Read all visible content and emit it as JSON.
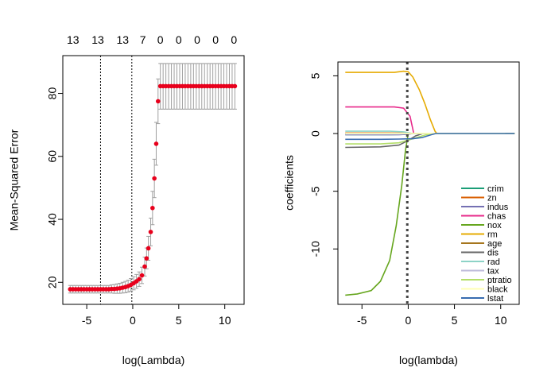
{
  "chart_data": [
    {
      "type": "scatter",
      "title": "",
      "xlabel": "log(Lambda)",
      "ylabel": "Mean-Squared Error",
      "xlim": [
        -7.6,
        12.1
      ],
      "ylim": [
        13,
        92
      ],
      "x_ticks": [
        {
          "value": -5,
          "label": "-5"
        },
        {
          "value": 0,
          "label": "0"
        },
        {
          "value": 5,
          "label": "5"
        },
        {
          "value": 10,
          "label": "10"
        }
      ],
      "y_ticks": [
        {
          "value": 20,
          "label": "20"
        },
        {
          "value": 40,
          "label": "40"
        },
        {
          "value": 60,
          "label": "60"
        },
        {
          "value": 80,
          "label": "80"
        }
      ],
      "top_axis": [
        {
          "value": -6.5,
          "label": "13"
        },
        {
          "value": -3.8,
          "label": "13"
        },
        {
          "value": -1.1,
          "label": "13"
        },
        {
          "value": 1.1,
          "label": "7"
        },
        {
          "value": 3.0,
          "label": "0"
        },
        {
          "value": 5.0,
          "label": "0"
        },
        {
          "value": 7.0,
          "label": "0"
        },
        {
          "value": 9.0,
          "label": "0"
        },
        {
          "value": 11.0,
          "label": "0"
        }
      ],
      "vlines": [
        -3.5,
        -0.1
      ],
      "point_color": "#e8001c",
      "errorbar_color": "#a0a0a0",
      "points": [
        {
          "x": -6.8,
          "y": 17.8,
          "lo": 16.6,
          "hi": 19.0
        },
        {
          "x": -6.5,
          "y": 17.8,
          "lo": 16.6,
          "hi": 19.0
        },
        {
          "x": -6.2,
          "y": 17.8,
          "lo": 16.6,
          "hi": 19.0
        },
        {
          "x": -5.9,
          "y": 17.8,
          "lo": 16.6,
          "hi": 19.0
        },
        {
          "x": -5.6,
          "y": 17.8,
          "lo": 16.6,
          "hi": 19.0
        },
        {
          "x": -5.3,
          "y": 17.8,
          "lo": 16.6,
          "hi": 19.0
        },
        {
          "x": -5.0,
          "y": 17.8,
          "lo": 16.6,
          "hi": 19.0
        },
        {
          "x": -4.7,
          "y": 17.8,
          "lo": 16.6,
          "hi": 19.0
        },
        {
          "x": -4.4,
          "y": 17.8,
          "lo": 16.6,
          "hi": 19.0
        },
        {
          "x": -4.1,
          "y": 17.8,
          "lo": 16.6,
          "hi": 19.0
        },
        {
          "x": -3.8,
          "y": 17.8,
          "lo": 16.6,
          "hi": 19.0
        },
        {
          "x": -3.5,
          "y": 17.8,
          "lo": 16.6,
          "hi": 19.0
        },
        {
          "x": -3.2,
          "y": 17.8,
          "lo": 16.6,
          "hi": 19.0
        },
        {
          "x": -2.9,
          "y": 17.8,
          "lo": 16.6,
          "hi": 19.0
        },
        {
          "x": -2.6,
          "y": 17.8,
          "lo": 16.6,
          "hi": 19.0
        },
        {
          "x": -2.3,
          "y": 17.9,
          "lo": 16.6,
          "hi": 19.2
        },
        {
          "x": -2.0,
          "y": 17.9,
          "lo": 16.5,
          "hi": 19.3
        },
        {
          "x": -1.7,
          "y": 18.0,
          "lo": 16.5,
          "hi": 19.5
        },
        {
          "x": -1.4,
          "y": 18.1,
          "lo": 16.5,
          "hi": 19.7
        },
        {
          "x": -1.1,
          "y": 18.3,
          "lo": 16.6,
          "hi": 20.0
        },
        {
          "x": -0.8,
          "y": 18.5,
          "lo": 16.7,
          "hi": 20.3
        },
        {
          "x": -0.5,
          "y": 18.8,
          "lo": 16.9,
          "hi": 20.7
        },
        {
          "x": -0.2,
          "y": 19.2,
          "lo": 17.2,
          "hi": 21.2
        },
        {
          "x": 0.1,
          "y": 19.7,
          "lo": 17.6,
          "hi": 21.8
        },
        {
          "x": 0.4,
          "y": 20.3,
          "lo": 18.1,
          "hi": 22.5
        },
        {
          "x": 0.7,
          "y": 21.0,
          "lo": 18.7,
          "hi": 23.3
        },
        {
          "x": 1.0,
          "y": 22.2,
          "lo": 19.6,
          "hi": 24.8
        },
        {
          "x": 1.3,
          "y": 25.0,
          "lo": 22.0,
          "hi": 28.0
        },
        {
          "x": 1.5,
          "y": 27.6,
          "lo": 24.3,
          "hi": 30.9
        },
        {
          "x": 1.7,
          "y": 30.8,
          "lo": 27.0,
          "hi": 34.6
        },
        {
          "x": 1.95,
          "y": 36.0,
          "lo": 31.6,
          "hi": 40.4
        },
        {
          "x": 2.15,
          "y": 43.6,
          "lo": 38.3,
          "hi": 48.9
        },
        {
          "x": 2.35,
          "y": 53.0,
          "lo": 46.9,
          "hi": 59.1
        },
        {
          "x": 2.55,
          "y": 64.0,
          "lo": 57.2,
          "hi": 70.8
        },
        {
          "x": 2.75,
          "y": 77.5,
          "lo": 70.4,
          "hi": 84.6
        },
        {
          "x": 3.0,
          "y": 82.3,
          "lo": 75.0,
          "hi": 89.5
        },
        {
          "x": 3.3,
          "y": 82.3,
          "lo": 75.0,
          "hi": 89.5
        },
        {
          "x": 3.6,
          "y": 82.3,
          "lo": 75.0,
          "hi": 89.5
        },
        {
          "x": 3.9,
          "y": 82.3,
          "lo": 75.0,
          "hi": 89.5
        },
        {
          "x": 4.2,
          "y": 82.3,
          "lo": 75.0,
          "hi": 89.5
        },
        {
          "x": 4.5,
          "y": 82.3,
          "lo": 75.0,
          "hi": 89.5
        },
        {
          "x": 4.8,
          "y": 82.3,
          "lo": 75.0,
          "hi": 89.5
        },
        {
          "x": 5.1,
          "y": 82.3,
          "lo": 75.0,
          "hi": 89.5
        },
        {
          "x": 5.4,
          "y": 82.3,
          "lo": 75.0,
          "hi": 89.5
        },
        {
          "x": 5.7,
          "y": 82.3,
          "lo": 75.0,
          "hi": 89.5
        },
        {
          "x": 6.0,
          "y": 82.3,
          "lo": 75.0,
          "hi": 89.5
        },
        {
          "x": 6.3,
          "y": 82.3,
          "lo": 75.0,
          "hi": 89.5
        },
        {
          "x": 6.6,
          "y": 82.3,
          "lo": 75.0,
          "hi": 89.5
        },
        {
          "x": 6.9,
          "y": 82.3,
          "lo": 75.0,
          "hi": 89.5
        },
        {
          "x": 7.2,
          "y": 82.3,
          "lo": 75.0,
          "hi": 89.5
        },
        {
          "x": 7.5,
          "y": 82.3,
          "lo": 75.0,
          "hi": 89.5
        },
        {
          "x": 7.8,
          "y": 82.3,
          "lo": 75.0,
          "hi": 89.5
        },
        {
          "x": 8.1,
          "y": 82.3,
          "lo": 75.0,
          "hi": 89.5
        },
        {
          "x": 8.4,
          "y": 82.3,
          "lo": 75.0,
          "hi": 89.5
        },
        {
          "x": 8.7,
          "y": 82.3,
          "lo": 75.0,
          "hi": 89.5
        },
        {
          "x": 9.0,
          "y": 82.3,
          "lo": 75.0,
          "hi": 89.5
        },
        {
          "x": 9.3,
          "y": 82.3,
          "lo": 75.0,
          "hi": 89.5
        },
        {
          "x": 9.6,
          "y": 82.3,
          "lo": 75.0,
          "hi": 89.5
        },
        {
          "x": 9.9,
          "y": 82.3,
          "lo": 75.0,
          "hi": 89.5
        },
        {
          "x": 10.2,
          "y": 82.3,
          "lo": 75.0,
          "hi": 89.5
        },
        {
          "x": 10.5,
          "y": 82.3,
          "lo": 75.0,
          "hi": 89.5
        },
        {
          "x": 10.8,
          "y": 82.3,
          "lo": 75.0,
          "hi": 89.5
        },
        {
          "x": 11.1,
          "y": 82.3,
          "lo": 75.0,
          "hi": 89.5
        }
      ]
    },
    {
      "type": "line",
      "title": "",
      "xlabel": "log(lambda)",
      "ylabel": "coefficients",
      "xlim": [
        -7.6,
        12.0
      ],
      "ylim": [
        -14.8,
        6.2
      ],
      "x_ticks": [
        {
          "value": -5,
          "label": "-5"
        },
        {
          "value": 0,
          "label": "0"
        },
        {
          "value": 5,
          "label": "5"
        },
        {
          "value": 10,
          "label": "10"
        }
      ],
      "y_ticks": [
        {
          "value": 5,
          "label": "5"
        },
        {
          "value": 0,
          "label": "0"
        },
        {
          "value": -5,
          "label": "-5"
        },
        {
          "value": -10,
          "label": "-10"
        }
      ],
      "vline": -0.1,
      "legend_position": "bottom-right",
      "series": [
        {
          "name": "crim",
          "color": "#1b9e77",
          "points": [
            [
              -6.8,
              -0.1
            ],
            [
              -2,
              -0.1
            ],
            [
              -0.5,
              -0.08
            ],
            [
              0.2,
              0
            ],
            [
              11.5,
              0
            ]
          ]
        },
        {
          "name": "zn",
          "color": "#d95f02",
          "points": [
            [
              -6.8,
              0.05
            ],
            [
              -2,
              0.05
            ],
            [
              0,
              0.03
            ],
            [
              0.5,
              0
            ],
            [
              11.5,
              0
            ]
          ]
        },
        {
          "name": "indus",
          "color": "#7570b3",
          "points": [
            [
              -6.8,
              -0.1
            ],
            [
              -1,
              -0.1
            ],
            [
              0,
              -0.05
            ],
            [
              0.5,
              0
            ],
            [
              11.5,
              0
            ]
          ]
        },
        {
          "name": "chas",
          "color": "#e7298a",
          "points": [
            [
              -6.8,
              2.3
            ],
            [
              -1.5,
              2.3
            ],
            [
              -0.5,
              2.2
            ],
            [
              0.2,
              1.5
            ],
            [
              0.6,
              0
            ],
            [
              11.5,
              0
            ]
          ]
        },
        {
          "name": "nox",
          "color": "#66a61e",
          "points": [
            [
              -6.8,
              -14.0
            ],
            [
              -5.5,
              -13.9
            ],
            [
              -4,
              -13.6
            ],
            [
              -3,
              -12.8
            ],
            [
              -2,
              -11.0
            ],
            [
              -1.3,
              -8.0
            ],
            [
              -0.7,
              -4.5
            ],
            [
              -0.3,
              -1.5
            ],
            [
              0,
              0
            ],
            [
              11.5,
              0
            ]
          ]
        },
        {
          "name": "rm",
          "color": "#e6ab02",
          "points": [
            [
              -6.8,
              5.3
            ],
            [
              -1.5,
              5.3
            ],
            [
              -0.5,
              5.4
            ],
            [
              0,
              5.35
            ],
            [
              0.5,
              4.9
            ],
            [
              1.2,
              3.8
            ],
            [
              1.8,
              2.6
            ],
            [
              2.4,
              1.2
            ],
            [
              2.9,
              0.2
            ],
            [
              3.1,
              0
            ],
            [
              11.5,
              0
            ]
          ]
        },
        {
          "name": "age",
          "color": "#a6761d",
          "points": [
            [
              -6.8,
              0.0
            ],
            [
              11.5,
              0.0
            ]
          ]
        },
        {
          "name": "dis",
          "color": "#666666",
          "points": [
            [
              -6.8,
              -1.2
            ],
            [
              -3,
              -1.15
            ],
            [
              -1,
              -1.0
            ],
            [
              0,
              -0.6
            ],
            [
              0.8,
              -0.2
            ],
            [
              1.6,
              0
            ],
            [
              11.5,
              0
            ]
          ]
        },
        {
          "name": "rad",
          "color": "#8dd3c7",
          "points": [
            [
              -6.8,
              0.2
            ],
            [
              -2,
              0.2
            ],
            [
              -0.5,
              0.15
            ],
            [
              0.5,
              0
            ],
            [
              11.5,
              0
            ]
          ]
        },
        {
          "name": "tax",
          "color": "#bebada",
          "points": [
            [
              -6.8,
              -0.05
            ],
            [
              -1,
              -0.05
            ],
            [
              0.3,
              0
            ],
            [
              11.5,
              0
            ]
          ]
        },
        {
          "name": "ptratio",
          "color": "#b3de69",
          "points": [
            [
              -6.8,
              -0.9
            ],
            [
              -3,
              -0.9
            ],
            [
              -1,
              -0.8
            ],
            [
              0.5,
              -0.45
            ],
            [
              1.5,
              -0.2
            ],
            [
              2.5,
              0
            ],
            [
              11.5,
              0
            ]
          ]
        },
        {
          "name": "black",
          "color": "#ffffb3",
          "points": [
            [
              -6.8,
              0.02
            ],
            [
              11.5,
              0.01
            ]
          ]
        },
        {
          "name": "lstat",
          "color": "#386cb0",
          "points": [
            [
              -6.8,
              -0.5
            ],
            [
              -3,
              -0.5
            ],
            [
              -1,
              -0.48
            ],
            [
              0.5,
              -0.45
            ],
            [
              1.5,
              -0.35
            ],
            [
              2.5,
              -0.1
            ],
            [
              3,
              0
            ],
            [
              11.5,
              0
            ]
          ]
        }
      ]
    }
  ]
}
